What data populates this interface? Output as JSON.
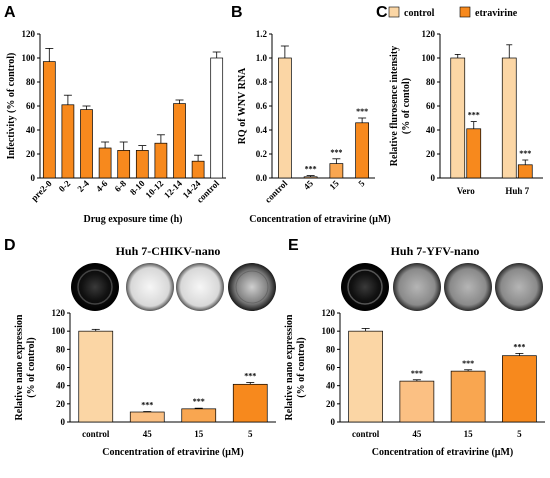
{
  "colors": {
    "control": "#fbd6a5",
    "etravirine_light": "#fbc083",
    "etravirine_mid": "#f9a650",
    "etravirine": "#f7891d",
    "outline": "#000000"
  },
  "legend": {
    "control": "control",
    "etravirine": "etravirine",
    "placement": "top"
  },
  "panels": {
    "A": {
      "letter": "A"
    },
    "B": {
      "letter": "B"
    },
    "C": {
      "letter": "C"
    },
    "D": {
      "letter": "D",
      "title": "Huh 7-CHIKV-nano"
    },
    "E": {
      "letter": "E",
      "title": "Huh 7-YFV-nano"
    }
  },
  "chart_data": [
    {
      "panel": "A",
      "type": "bar",
      "xlabel": "Drug exposure time (h)",
      "ylabel": "Infectivity (% of  control)",
      "ylim": [
        0,
        120
      ],
      "yticks": [
        0,
        20,
        40,
        60,
        80,
        100,
        120
      ],
      "categories": [
        "pre2-0",
        "0-2",
        "2-4",
        "4-6",
        "6-8",
        "8-10",
        "10-12",
        "12-14",
        "14-24",
        "control"
      ],
      "values": [
        97,
        61,
        57,
        25,
        23,
        23,
        29,
        62,
        14,
        100
      ],
      "errors": [
        11,
        8,
        3,
        5,
        7,
        4,
        7,
        3,
        5,
        5
      ],
      "fills": [
        "etravirine",
        "etravirine",
        "etravirine",
        "etravirine",
        "etravirine",
        "etravirine",
        "etravirine",
        "etravirine",
        "etravirine",
        "white"
      ],
      "significance": [
        "",
        "",
        "",
        "",
        "",
        "",
        "",
        "",
        "",
        ""
      ],
      "grid": false
    },
    {
      "panel": "B",
      "type": "bar",
      "xlabel": "Concentration of etravirine (μM)",
      "ylabel": "RQ of WNV RNA",
      "ylim": [
        0,
        1.2
      ],
      "yticks": [
        0.0,
        0.2,
        0.4,
        0.6,
        0.8,
        1.0,
        1.2
      ],
      "ytick_labels": [
        "0.0",
        "0.2",
        "0.4",
        "0.6",
        "0.8",
        "1.0",
        "1.2"
      ],
      "categories": [
        "control",
        "45",
        "15",
        "5"
      ],
      "values": [
        1.0,
        0.01,
        0.12,
        0.46
      ],
      "errors": [
        0.1,
        0.01,
        0.04,
        0.04
      ],
      "fills": [
        "control",
        "etravirine_light",
        "etravirine_mid",
        "etravirine"
      ],
      "significance": [
        "",
        "***",
        "***",
        "***"
      ],
      "grid": false
    },
    {
      "panel": "C",
      "type": "bar",
      "xlabel": "",
      "ylabel": "Relative flurosence intensity (% of contol)",
      "ylabel_lines": [
        "Relative flurosence intensity",
        "(% of contol)"
      ],
      "ylim": [
        0,
        120
      ],
      "yticks": [
        0,
        20,
        40,
        60,
        80,
        100,
        120
      ],
      "categories": [
        "Vero",
        "Huh 7"
      ],
      "series": [
        {
          "name": "control",
          "values": [
            100,
            100
          ],
          "errors": [
            3,
            11
          ],
          "significance": [
            "",
            ""
          ]
        },
        {
          "name": "etravirine",
          "values": [
            41,
            11
          ],
          "errors": [
            6,
            4
          ],
          "significance": [
            "***",
            "***"
          ]
        }
      ],
      "grid": false
    },
    {
      "panel": "D",
      "type": "bar",
      "title": "Huh 7-CHIKV-nano",
      "xlabel": "Concentration of etravirine (μM)",
      "ylabel": "Relative nano expression (% of  control)",
      "ylabel_lines": [
        "Relative nano expression",
        "(% of  control)"
      ],
      "ylim": [
        0,
        120
      ],
      "yticks": [
        0,
        20,
        40,
        60,
        80,
        100,
        120
      ],
      "categories": [
        "control",
        "45",
        "15",
        "5"
      ],
      "values": [
        100,
        11,
        14.5,
        41.5
      ],
      "errors": [
        2,
        0.5,
        0.7,
        2
      ],
      "fills": [
        "control",
        "etravirine_light",
        "etravirine_mid",
        "etravirine"
      ],
      "significance": [
        "",
        "***",
        "***",
        "***"
      ],
      "grid": false
    },
    {
      "panel": "E",
      "type": "bar",
      "title": "Huh 7-YFV-nano",
      "xlabel": "Concentration of etravirine (μM)",
      "ylabel": "Relative nano expression (% of  control)",
      "ylabel_lines": [
        "Relative nano expression",
        "(% of  control)"
      ],
      "ylim": [
        0,
        120
      ],
      "yticks": [
        0,
        20,
        40,
        60,
        80,
        100,
        120
      ],
      "categories": [
        "control",
        "45",
        "15",
        "5"
      ],
      "values": [
        100,
        45,
        56,
        73
      ],
      "errors": [
        3,
        1.5,
        1.5,
        2.5
      ],
      "fills": [
        "control",
        "etravirine_light",
        "etravirine_mid",
        "etravirine"
      ],
      "significance": [
        "",
        "***",
        "***",
        "***"
      ],
      "grid": false
    }
  ]
}
